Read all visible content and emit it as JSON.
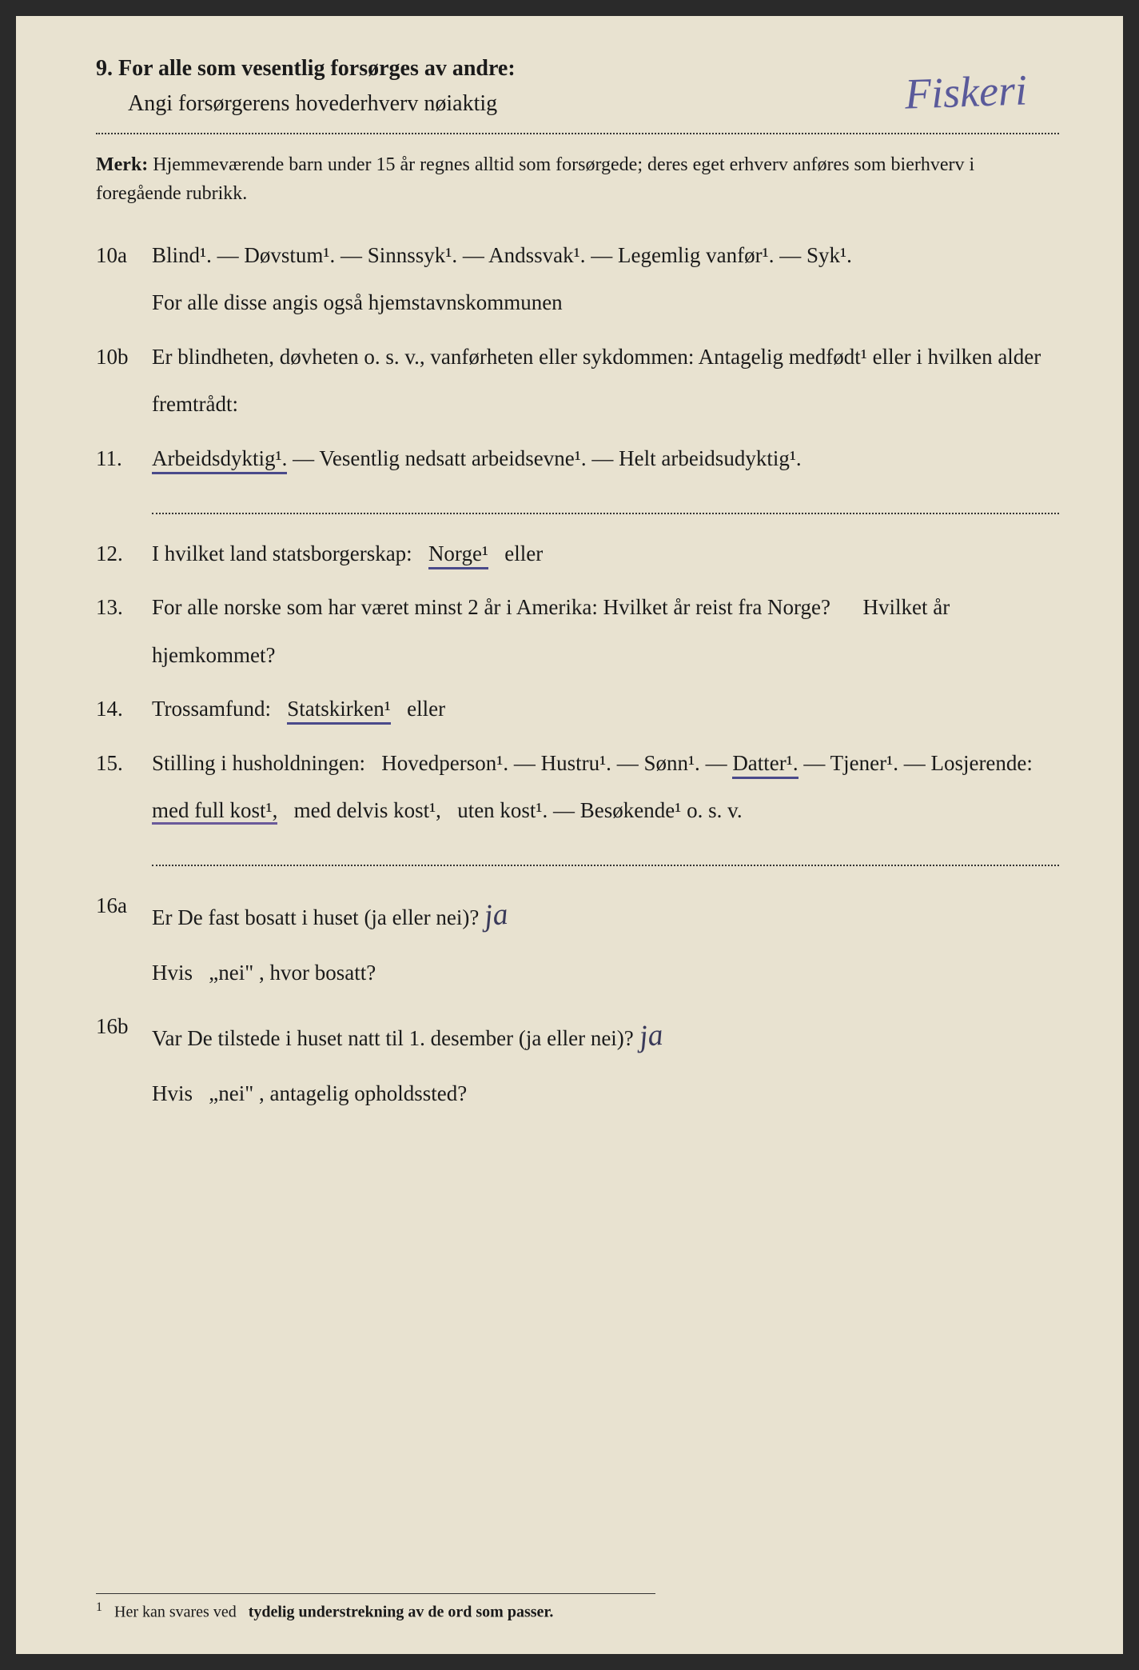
{
  "q9": {
    "num": "9.",
    "title": "For alle som vesentlig forsørges av andre:",
    "subtext": "Angi forsørgerens hovederhverv nøiaktig",
    "handwritten": "Fiskeri"
  },
  "merk": {
    "label": "Merk:",
    "text": "Hjemmeværende barn under 15 år regnes alltid som forsørgede; deres eget erhverv anføres som bierhverv i foregående rubrikk."
  },
  "q10a": {
    "num": "10a",
    "options": [
      "Blind¹.",
      "Døvstum¹.",
      "Sinnssyk¹.",
      "Andssvak¹.",
      "Legemlig vanfør¹.",
      "Syk¹."
    ],
    "line2": "For alle disse angis også hjemstavnskommunen"
  },
  "q10b": {
    "num": "10b",
    "text": "Er blindheten, døvheten o. s. v., vanførheten eller sykdommen: Antagelig medfødt¹ eller i hvilken alder fremtrådt:"
  },
  "q11": {
    "num": "11.",
    "opt1": "Arbeidsdyktig¹.",
    "opt2": "Vesentlig nedsatt arbeidsevne¹.",
    "opt3": "Helt arbeidsudyktig¹."
  },
  "q12": {
    "num": "12.",
    "text": "I hvilket land statsborgerskap:",
    "opt": "Norge¹",
    "or": "eller"
  },
  "q13": {
    "num": "13.",
    "text": "For alle norske som har været minst 2 år i Amerika: Hvilket år reist fra Norge?",
    "text2": "Hvilket år hjemkommet?"
  },
  "q14": {
    "num": "14.",
    "text": "Trossamfund:",
    "opt": "Statskirken¹",
    "or": "eller"
  },
  "q15": {
    "num": "15.",
    "text": "Stilling i husholdningen:",
    "opts": [
      "Hovedperson¹.",
      "Hustru¹.",
      "Sønn¹.",
      "Datter¹.",
      "Tjener¹."
    ],
    "losjerende": "Losjerende:",
    "kost_opts": [
      "med full kost¹,",
      "med delvis kost¹,",
      "uten kost¹."
    ],
    "besok": "Besøkende¹ o. s. v."
  },
  "q16a": {
    "num": "16a",
    "text": "Er De fast bosatt i huset (ja eller nei)?",
    "answer": "ja",
    "line2_pre": "Hvis",
    "line2_quote": "„nei\"",
    "line2_post": ", hvor bosatt?"
  },
  "q16b": {
    "num": "16b",
    "text": "Var De tilstede i huset natt til 1. desember (ja eller nei)?",
    "answer": "ja",
    "line2_pre": "Hvis",
    "line2_quote": "„nei\"",
    "line2_post": ", antagelig opholdssted?"
  },
  "footnote": {
    "marker": "1",
    "text_pre": "Her kan svares ved",
    "text_bold": "tydelig understrekning av de ord som passer."
  },
  "sep": " — "
}
